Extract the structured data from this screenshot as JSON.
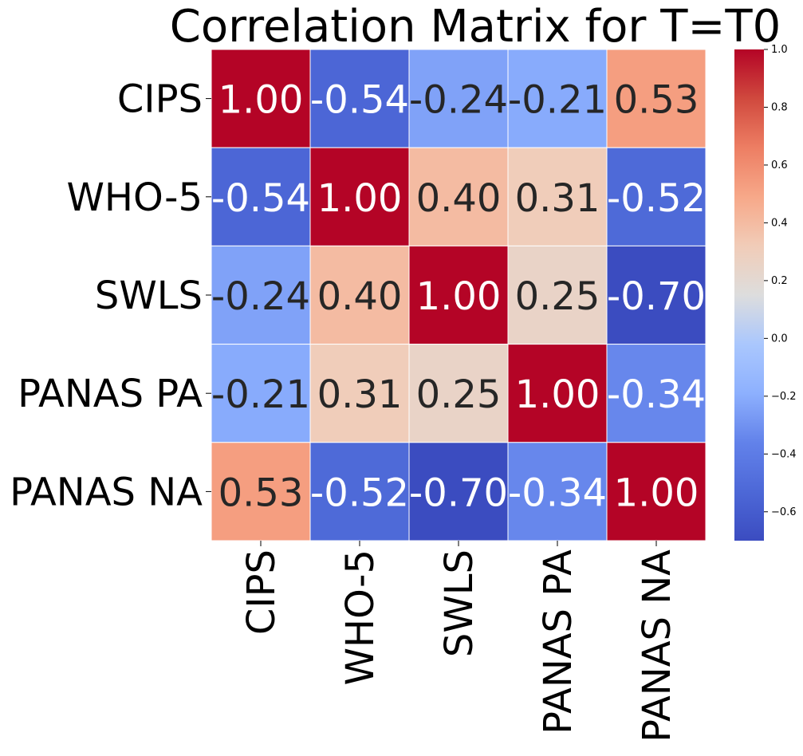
{
  "chart_data": {
    "type": "heatmap",
    "title": "Correlation Matrix for T=T0",
    "xlabel": "",
    "ylabel": "",
    "categories": [
      "CIPS",
      "WHO-5",
      "SWLS",
      "PANAS PA",
      "PANAS NA"
    ],
    "rows": [
      "CIPS",
      "WHO-5",
      "SWLS",
      "PANAS PA",
      "PANAS NA"
    ],
    "values": [
      [
        1.0,
        -0.54,
        -0.24,
        -0.21,
        0.53
      ],
      [
        -0.54,
        1.0,
        0.4,
        0.31,
        -0.52
      ],
      [
        -0.24,
        0.4,
        1.0,
        0.25,
        -0.7
      ],
      [
        -0.21,
        0.31,
        0.25,
        1.0,
        -0.34
      ],
      [
        0.53,
        -0.52,
        -0.7,
        -0.34,
        1.0
      ]
    ],
    "cell_labels": [
      [
        "1.00",
        "-0.54",
        "-0.24",
        "-0.21",
        "0.53"
      ],
      [
        "-0.54",
        "1.00",
        "0.40",
        "0.31",
        "-0.52"
      ],
      [
        "-0.24",
        "0.40",
        "1.00",
        "0.25",
        "-0.70"
      ],
      [
        "-0.21",
        "0.31",
        "0.25",
        "1.00",
        "-0.34"
      ],
      [
        "0.53",
        "-0.52",
        "-0.70",
        "-0.34",
        "1.00"
      ]
    ],
    "colormap": "coolwarm",
    "colorbar": {
      "range": [
        -0.7,
        1.0
      ],
      "ticks": [
        -0.6,
        -0.4,
        -0.2,
        0.0,
        0.2,
        0.4,
        0.6,
        0.8,
        1.0
      ],
      "tick_labels": [
        "−0.6",
        "−0.4",
        "−0.2",
        "0.0",
        "0.2",
        "0.4",
        "0.6",
        "0.8",
        "1.0"
      ]
    },
    "legend_placement": "right",
    "grid": false
  }
}
